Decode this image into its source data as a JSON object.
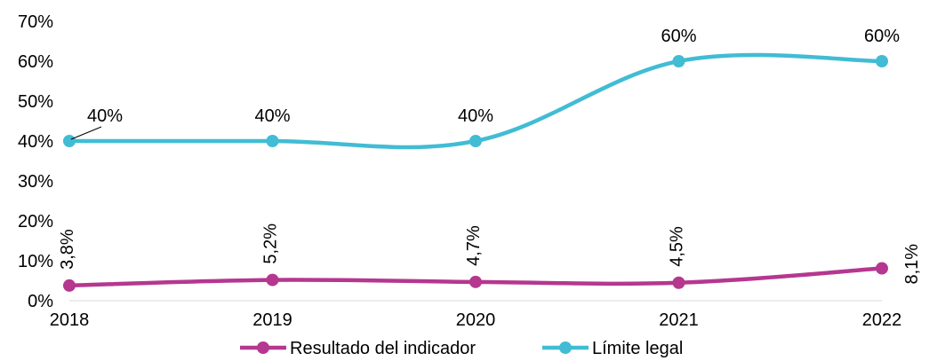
{
  "chart_data": {
    "type": "line",
    "title": "",
    "xlabel": "",
    "ylabel": "",
    "categories": [
      "2018",
      "2019",
      "2020",
      "2021",
      "2022"
    ],
    "ylim": [
      0,
      70
    ],
    "yticks": [
      "0%",
      "10%",
      "20%",
      "30%",
      "40%",
      "50%",
      "60%",
      "70%"
    ],
    "grid": false,
    "smooth": true,
    "legend_position": "bottom",
    "series": [
      {
        "name": "Resultado del indicador",
        "values": [
          3.8,
          5.2,
          4.7,
          4.5,
          8.1
        ],
        "labels": [
          "3,8%",
          "5,2%",
          "4,7%",
          "4,5%",
          "8,1%"
        ],
        "label_orientation": "vertical",
        "color": "#b5378f"
      },
      {
        "name": "Límite legal",
        "values": [
          40,
          40,
          40,
          60,
          60
        ],
        "labels": [
          "40%",
          "40%",
          "40%",
          "60%",
          "60%"
        ],
        "label_orientation": "horizontal",
        "color": "#41bcd4"
      }
    ]
  }
}
